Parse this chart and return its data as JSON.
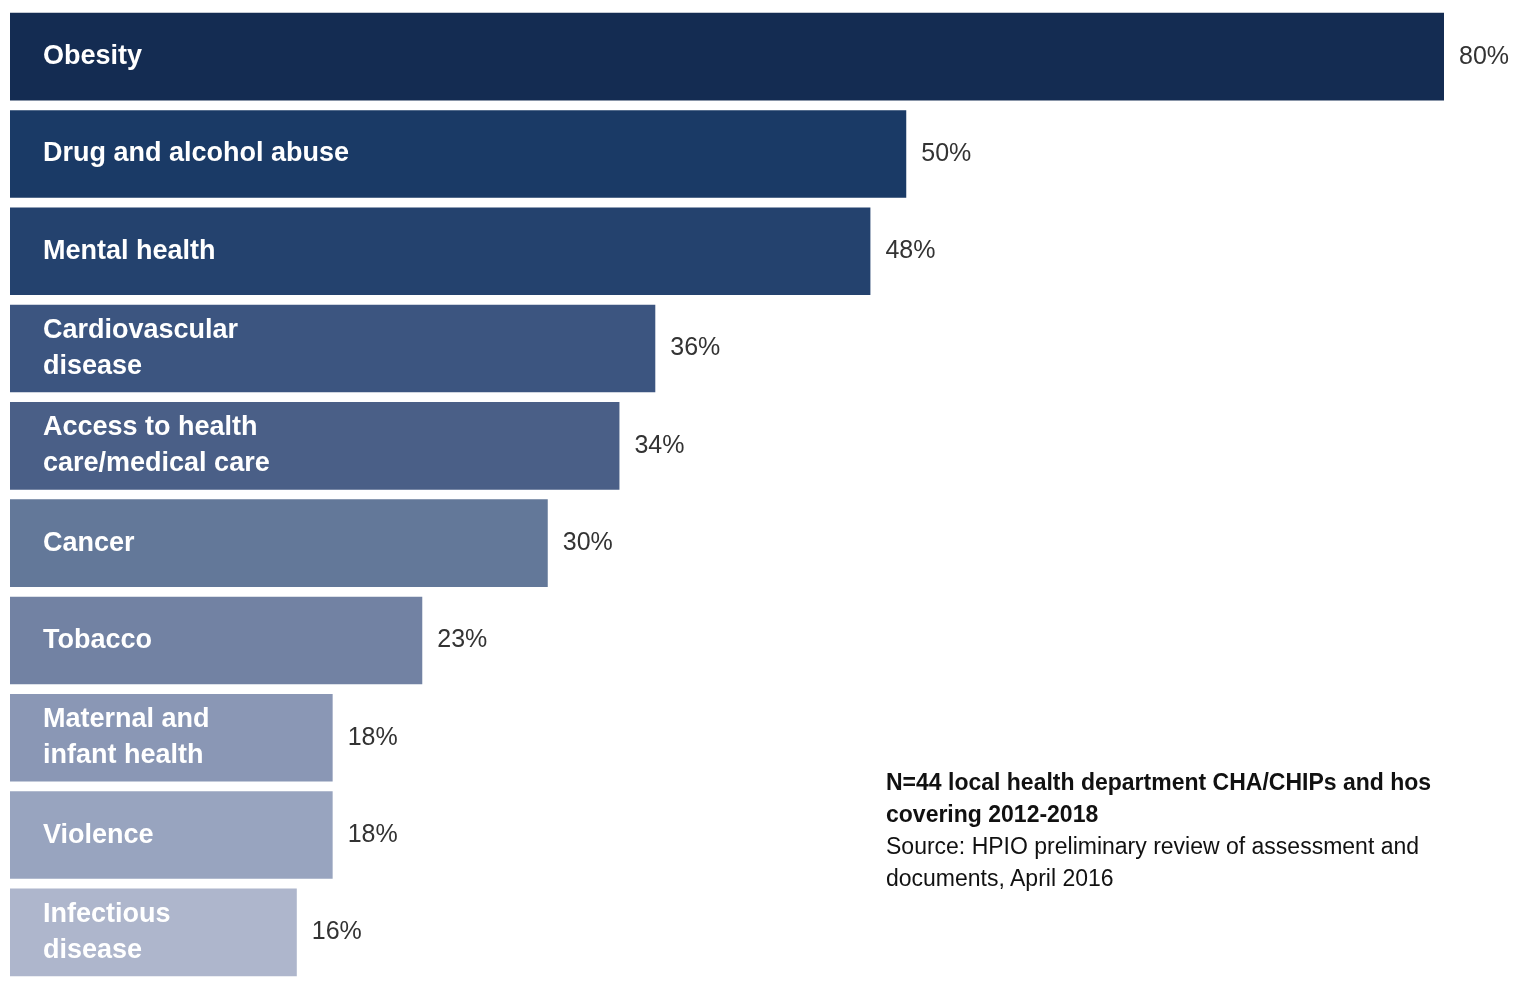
{
  "chart_data": {
    "type": "bar",
    "orientation": "horizontal",
    "categories": [
      "Obesity",
      "Drug and alcohol abuse",
      "Mental health",
      "Cardiovascular\ndisease",
      "Access to health\ncare/medical care",
      "Cancer",
      "Tobacco",
      "Maternal and\ninfant health",
      "Violence",
      "Infectious\ndisease"
    ],
    "values": [
      80,
      50,
      48,
      36,
      34,
      30,
      23,
      18,
      18,
      16
    ],
    "value_labels": [
      "80%",
      "50%",
      "48%",
      "36%",
      "34%",
      "30%",
      "23%",
      "18%",
      "18%",
      "16%"
    ],
    "colors": [
      "#142c52",
      "#1a3a66",
      "#24426e",
      "#3c5580",
      "#4a5f87",
      "#637899",
      "#7282a3",
      "#8a97b5",
      "#98a4bf",
      "#aeb6cc"
    ],
    "annotations": [
      "N=44 local health department CHA/CHIPs and hos\ncovering 2012-2018",
      "Source: HPIO preliminary review of assessment and\ndocuments, April 2016"
    ]
  }
}
